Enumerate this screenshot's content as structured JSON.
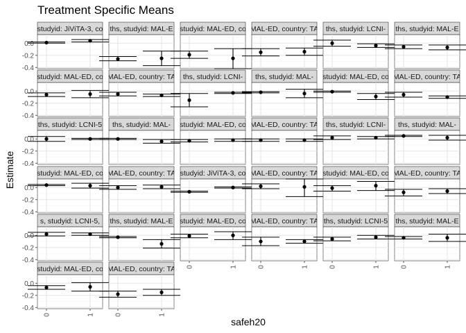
{
  "chart_data": {
    "type": "scatter",
    "title": "Treatment Specific Means",
    "xlabel": "safeh20",
    "ylabel": "Estimate",
    "x_categories": [
      "0",
      "1"
    ],
    "y_ticks": [
      "0.0",
      "-0.2",
      "-0.4"
    ],
    "y_tick_values": [
      0.0,
      -0.2,
      -0.4
    ],
    "ylim": [
      -0.42,
      0.14
    ],
    "grid": true,
    "facets": [
      {
        "label": "studyid: JiViTA-3, co",
        "points": [
          {
            "x": "0",
            "est": 0.01,
            "lo": 0.0,
            "hi": 0.02
          },
          {
            "x": "1",
            "est": 0.04,
            "lo": 0.02,
            "hi": 0.06
          }
        ]
      },
      {
        "label": "ths, studyid: MAL-E",
        "points": [
          {
            "x": "0",
            "est": -0.26,
            "lo": -0.29,
            "hi": -0.22
          },
          {
            "x": "1",
            "est": -0.25,
            "lo": -0.37,
            "hi": -0.13
          }
        ]
      },
      {
        "label": "studyid: MAL-ED, co",
        "points": [
          {
            "x": "0",
            "est": -0.19,
            "lo": -0.25,
            "hi": -0.13
          },
          {
            "x": "1",
            "est": -0.25,
            "lo": -0.42,
            "hi": -0.09
          }
        ]
      },
      {
        "label": "MAL-ED, country: TA",
        "points": [
          {
            "x": "0",
            "est": -0.15,
            "lo": -0.21,
            "hi": -0.09
          },
          {
            "x": "1",
            "est": -0.14,
            "lo": -0.2,
            "hi": -0.08
          }
        ]
      },
      {
        "label": "ths, studyid: LCNI-",
        "points": [
          {
            "x": "0",
            "est": 0.0,
            "lo": -0.05,
            "hi": 0.05
          },
          {
            "x": "1",
            "est": -0.04,
            "lo": -0.07,
            "hi": -0.01
          }
        ]
      },
      {
        "label": "ths, studyid: MAL-E",
        "points": [
          {
            "x": "0",
            "est": -0.06,
            "lo": -0.09,
            "hi": -0.03
          },
          {
            "x": "1",
            "est": -0.07,
            "lo": -0.11,
            "hi": -0.03
          }
        ]
      },
      {
        "label": "studyid: MAL-ED, co",
        "points": [
          {
            "x": "0",
            "est": -0.06,
            "lo": -0.09,
            "hi": -0.03
          },
          {
            "x": "1",
            "est": -0.05,
            "lo": -0.11,
            "hi": 0.01
          }
        ]
      },
      {
        "label": "MAL-ED, country: TA",
        "points": [
          {
            "x": "0",
            "est": -0.05,
            "lo": -0.08,
            "hi": -0.02
          },
          {
            "x": "1",
            "est": -0.07,
            "lo": -0.09,
            "hi": -0.05
          }
        ]
      },
      {
        "label": "ths, studyid: LCNI-",
        "points": [
          {
            "x": "0",
            "est": -0.15,
            "lo": -0.26,
            "hi": -0.04
          },
          {
            "x": "1",
            "est": -0.03,
            "lo": -0.04,
            "hi": -0.02
          }
        ]
      },
      {
        "label": "ths, studyid: MAL-",
        "points": [
          {
            "x": "0",
            "est": -0.02,
            "lo": -0.03,
            "hi": -0.01
          },
          {
            "x": "1",
            "est": -0.04,
            "lo": -0.11,
            "hi": 0.03
          }
        ]
      },
      {
        "label": "studyid: MAL-ED, co",
        "points": [
          {
            "x": "0",
            "est": -0.01,
            "lo": -0.02,
            "hi": 0.0
          },
          {
            "x": "1",
            "est": -0.09,
            "lo": -0.14,
            "hi": -0.04
          }
        ]
      },
      {
        "label": "MAL-ED, country: TA",
        "points": [
          {
            "x": "0",
            "est": -0.06,
            "lo": -0.1,
            "hi": -0.02
          },
          {
            "x": "1",
            "est": -0.1,
            "lo": -0.12,
            "hi": -0.08
          }
        ]
      },
      {
        "label": "ths, studyid: LCNI-5",
        "points": [
          {
            "x": "0",
            "est": 0.0,
            "lo": -0.04,
            "hi": 0.04
          },
          {
            "x": "1",
            "est": 0.0,
            "lo": -0.01,
            "hi": 0.01
          }
        ]
      },
      {
        "label": "ths, studyid: MAL-",
        "points": [
          {
            "x": "0",
            "est": 0.0,
            "lo": -0.01,
            "hi": 0.01
          },
          {
            "x": "1",
            "est": -0.04,
            "lo": -0.07,
            "hi": -0.01
          }
        ]
      },
      {
        "label": "studyid: MAL-ED, co",
        "points": [
          {
            "x": "0",
            "est": -0.03,
            "lo": -0.05,
            "hi": -0.01
          },
          {
            "x": "1",
            "est": -0.02,
            "lo": -0.04,
            "hi": 0.0
          }
        ]
      },
      {
        "label": "MAL-ED, country: TA",
        "points": [
          {
            "x": "0",
            "est": -0.02,
            "lo": -0.04,
            "hi": 0.0
          },
          {
            "x": "1",
            "est": -0.02,
            "lo": -0.04,
            "hi": 0.0
          }
        ]
      },
      {
        "label": "ths, studyid: LCNI-",
        "points": [
          {
            "x": "0",
            "est": 0.02,
            "lo": -0.01,
            "hi": 0.05
          },
          {
            "x": "1",
            "est": 0.02,
            "lo": 0.0,
            "hi": 0.04
          }
        ]
      },
      {
        "label": "ths, studyid: MAL-",
        "points": [
          {
            "x": "0",
            "est": 0.05,
            "lo": 0.04,
            "hi": 0.06
          },
          {
            "x": "1",
            "est": 0.02,
            "lo": -0.02,
            "hi": 0.06
          }
        ]
      },
      {
        "label": "studyid: MAL-ED, co",
        "points": [
          {
            "x": "0",
            "est": 0.04,
            "lo": 0.03,
            "hi": 0.05
          },
          {
            "x": "1",
            "est": 0.03,
            "lo": -0.01,
            "hi": 0.07
          }
        ]
      },
      {
        "label": "MAL-ED, country: TA",
        "points": [
          {
            "x": "0",
            "est": 0.0,
            "lo": -0.03,
            "hi": 0.03
          },
          {
            "x": "1",
            "est": 0.01,
            "lo": -0.02,
            "hi": 0.04
          }
        ]
      },
      {
        "label": "studyid: JiViTA-3, co",
        "points": [
          {
            "x": "0",
            "est": -0.07,
            "lo": -0.08,
            "hi": -0.06
          },
          {
            "x": "1",
            "est": 0.0,
            "lo": -0.01,
            "hi": 0.01
          }
        ]
      },
      {
        "label": "MAL-ED, country: TA",
        "points": [
          {
            "x": "0",
            "est": 0.02,
            "lo": -0.02,
            "hi": 0.06
          },
          {
            "x": "1",
            "est": 0.01,
            "lo": -0.15,
            "hi": 0.14
          }
        ]
      },
      {
        "label": "studyid: MAL-ED, co",
        "points": [
          {
            "x": "0",
            "est": -0.01,
            "lo": -0.06,
            "hi": 0.03
          },
          {
            "x": "1",
            "est": 0.03,
            "lo": -0.05,
            "hi": 0.1
          }
        ]
      },
      {
        "label": "MAL-ED, country: TA",
        "points": [
          {
            "x": "0",
            "est": -0.08,
            "lo": -0.14,
            "hi": -0.03
          },
          {
            "x": "1",
            "est": -0.06,
            "lo": -0.1,
            "hi": -0.02
          }
        ]
      },
      {
        "label": "s, studyid: LCNI-5,",
        "points": [
          {
            "x": "0",
            "est": 0.02,
            "lo": -0.01,
            "hi": 0.05
          },
          {
            "x": "1",
            "est": 0.02,
            "lo": 0.0,
            "hi": 0.04
          }
        ]
      },
      {
        "label": "ths, studyid: MAL-E",
        "points": [
          {
            "x": "0",
            "est": -0.03,
            "lo": -0.04,
            "hi": -0.02
          },
          {
            "x": "1",
            "est": -0.14,
            "lo": -0.21,
            "hi": -0.07
          }
        ]
      },
      {
        "label": "studyid: MAL-ED, co",
        "points": [
          {
            "x": "0",
            "est": -0.01,
            "lo": -0.04,
            "hi": 0.02
          },
          {
            "x": "1",
            "est": 0.0,
            "lo": -0.07,
            "hi": 0.06
          }
        ]
      },
      {
        "label": "MAL-ED, country: TA",
        "points": [
          {
            "x": "0",
            "est": -0.1,
            "lo": -0.17,
            "hi": -0.03
          },
          {
            "x": "1",
            "est": -0.1,
            "lo": -0.13,
            "hi": -0.07
          }
        ]
      },
      {
        "label": "ths, studyid: LCNI-5",
        "points": [
          {
            "x": "0",
            "est": -0.06,
            "lo": -0.09,
            "hi": -0.03
          },
          {
            "x": "1",
            "est": -0.03,
            "lo": -0.06,
            "hi": 0.0
          }
        ]
      },
      {
        "label": "ths, studyid: MAL-E",
        "points": [
          {
            "x": "0",
            "est": -0.04,
            "lo": -0.06,
            "hi": -0.02
          },
          {
            "x": "1",
            "est": -0.04,
            "lo": -0.1,
            "hi": 0.02
          }
        ]
      },
      {
        "label": "studyid: MAL-ED, co",
        "points": [
          {
            "x": "0",
            "est": -0.07,
            "lo": -0.1,
            "hi": -0.04
          },
          {
            "x": "1",
            "est": -0.06,
            "lo": -0.13,
            "hi": 0.01
          }
        ]
      },
      {
        "label": "MAL-ED, country: TA",
        "points": [
          {
            "x": "0",
            "est": -0.18,
            "lo": -0.23,
            "hi": -0.13
          },
          {
            "x": "1",
            "est": -0.15,
            "lo": -0.2,
            "hi": -0.1
          }
        ]
      }
    ]
  }
}
